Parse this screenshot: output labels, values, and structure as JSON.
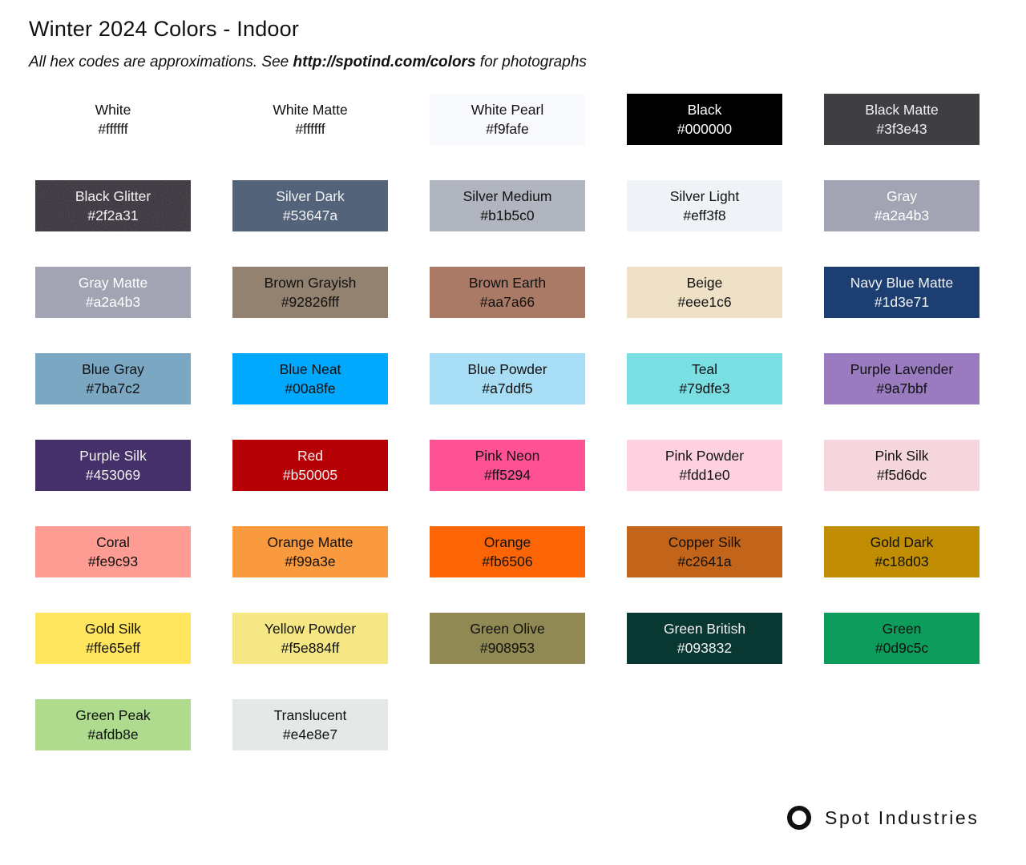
{
  "page": {
    "title": "Winter 2024 Colors - Indoor",
    "subtitle": {
      "prefix": "All hex codes are approximations. See ",
      "link": "http://spotind.com/colors",
      "suffix": " for photographs"
    }
  },
  "brand": {
    "name": "Spot Industries",
    "logo_icon": "circle-outline-icon",
    "color": "#111111"
  },
  "grid": {
    "columns": 5,
    "swatches": [
      {
        "name": "White",
        "hex": "#ffffff",
        "bg": "#ffffff",
        "text_color": "#111111"
      },
      {
        "name": "White Matte",
        "hex": "#ffffff",
        "bg": "#ffffff",
        "text_color": "#111111"
      },
      {
        "name": "White Pearl",
        "hex": "#f9fafe",
        "bg": "#f9fafe",
        "text_color": "#111111"
      },
      {
        "name": "Black",
        "hex": "#000000",
        "bg": "#000000",
        "text_color": "#ffffff"
      },
      {
        "name": "Black Matte",
        "hex": "#3f3e43",
        "bg": "#3f3e43",
        "text_color": "#f2f2f2"
      },
      {
        "name": "Black Glitter",
        "hex": "#2f2a31",
        "bg": "#2f2a31",
        "text_color": "#f2f2f2",
        "texture": "glitter"
      },
      {
        "name": "Silver Dark",
        "hex": "#53647a",
        "bg": "#53647a",
        "text_color": "#f2f2f2"
      },
      {
        "name": "Silver Medium",
        "hex": "#b1b5c0",
        "bg": "#b1b5c0",
        "text_color": "#111111"
      },
      {
        "name": "Silver Light",
        "hex": "#eff3f8",
        "bg": "#eff3f8",
        "text_color": "#111111"
      },
      {
        "name": "Gray",
        "hex": "#a2a4b3",
        "bg": "#a2a4b3",
        "text_color": "#ffffff"
      },
      {
        "name": "Gray Matte",
        "hex": "#a2a4b3",
        "bg": "#a2a4b3",
        "text_color": "#ffffff"
      },
      {
        "name": "Brown Grayish",
        "hex": "#92826fff",
        "bg": "#92826f",
        "text_color": "#111111"
      },
      {
        "name": "Brown Earth",
        "hex": "#aa7a66",
        "bg": "#aa7a66",
        "text_color": "#111111"
      },
      {
        "name": "Beige",
        "hex": "#eee1c6",
        "bg": "#eee1c6",
        "text_color": "#111111"
      },
      {
        "name": "Navy Blue Matte",
        "hex": "#1d3e71",
        "bg": "#1d3e71",
        "text_color": "#f2f2f2"
      },
      {
        "name": "Blue Gray",
        "hex": "#7ba7c2",
        "bg": "#7ba7c2",
        "text_color": "#111111"
      },
      {
        "name": "Blue Neat",
        "hex": "#00a8fe",
        "bg": "#00a8fe",
        "text_color": "#111111"
      },
      {
        "name": "Blue Powder",
        "hex": "#a7ddf5",
        "bg": "#a7ddf5",
        "text_color": "#111111"
      },
      {
        "name": "Teal",
        "hex": "#79dfe3",
        "bg": "#79dfe3",
        "text_color": "#111111"
      },
      {
        "name": "Purple Lavender",
        "hex": "#9a7bbf",
        "bg": "#9a7bbf",
        "text_color": "#111111"
      },
      {
        "name": "Purple Silk",
        "hex": "#453069",
        "bg": "#453069",
        "text_color": "#f2f2f2"
      },
      {
        "name": "Red",
        "hex": "#b50005",
        "bg": "#b50005",
        "text_color": "#f2f2f2"
      },
      {
        "name": "Pink Neon",
        "hex": "#ff5294",
        "bg": "#ff5294",
        "text_color": "#111111"
      },
      {
        "name": "Pink Powder",
        "hex": "#fdd1e0",
        "bg": "#fdd1e0",
        "text_color": "#111111"
      },
      {
        "name": "Pink Silk",
        "hex": "#f5d6dc",
        "bg": "#f5d6dc",
        "text_color": "#111111"
      },
      {
        "name": "Coral",
        "hex": "#fe9c93",
        "bg": "#fe9c93",
        "text_color": "#111111"
      },
      {
        "name": "Orange Matte",
        "hex": "#f99a3e",
        "bg": "#f99a3e",
        "text_color": "#111111"
      },
      {
        "name": "Orange",
        "hex": "#fb6506",
        "bg": "#fb6506",
        "text_color": "#111111"
      },
      {
        "name": "Copper Silk",
        "hex": "#c2641a",
        "bg": "#c2641a",
        "text_color": "#111111"
      },
      {
        "name": "Gold Dark",
        "hex": "#c18d03",
        "bg": "#c18d03",
        "text_color": "#111111"
      },
      {
        "name": "Gold Silk",
        "hex": "#ffe65eff",
        "bg": "#ffe65e",
        "text_color": "#111111"
      },
      {
        "name": "Yellow Powder",
        "hex": "#f5e884ff",
        "bg": "#f5e884",
        "text_color": "#111111"
      },
      {
        "name": "Green Olive",
        "hex": "#908953",
        "bg": "#908953",
        "text_color": "#111111"
      },
      {
        "name": "Green British",
        "hex": "#093832",
        "bg": "#093832",
        "text_color": "#f2f2f2"
      },
      {
        "name": "Green",
        "hex": "#0d9c5c",
        "bg": "#0d9c5c",
        "text_color": "#111111"
      },
      {
        "name": "Green Peak",
        "hex": "#afdb8e",
        "bg": "#afdb8e",
        "text_color": "#111111"
      },
      {
        "name": "Translucent",
        "hex": "#e4e8e7",
        "bg": "#e4e8e7",
        "text_color": "#111111"
      }
    ]
  }
}
